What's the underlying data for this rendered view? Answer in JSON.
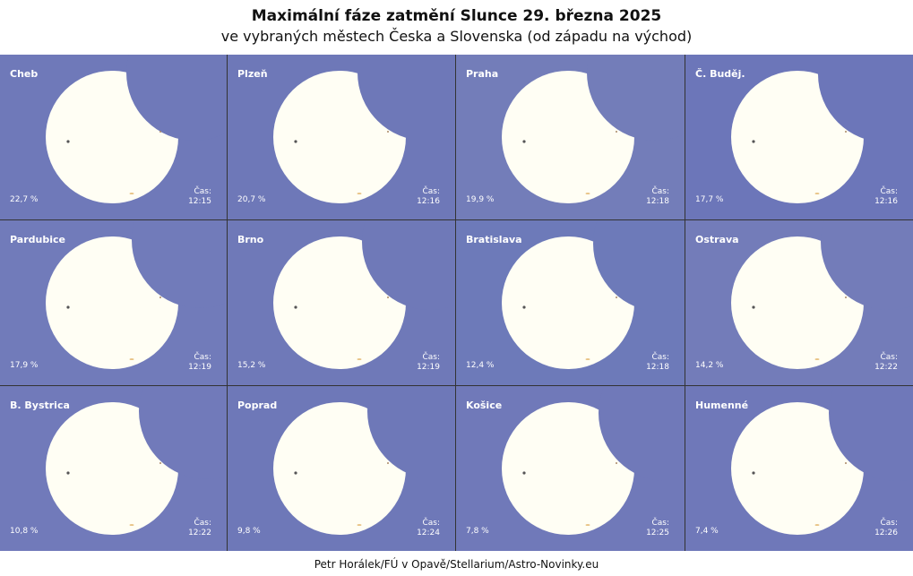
{
  "header": {
    "title": "Maximální fáze zatmění Slunce 29. března 2025",
    "subtitle": "ve vybraných městech Česka a Slovenska (od západu na východ)"
  },
  "time_label": "Čas:",
  "panels": [
    {
      "city": "Cheb",
      "fraction": "22,7 %",
      "time": "12:15"
    },
    {
      "city": "Plzeň",
      "fraction": "20,7 %",
      "time": "12:16"
    },
    {
      "city": "Praha",
      "fraction": "19,9 %",
      "time": "12:18"
    },
    {
      "city": "Č. Buděj.",
      "fraction": "17,7 %",
      "time": "12:16"
    },
    {
      "city": "Pardubice",
      "fraction": "17,9 %",
      "time": "12:19"
    },
    {
      "city": "Brno",
      "fraction": "15,2 %",
      "time": "12:19"
    },
    {
      "city": "Bratislava",
      "fraction": "12,4 %",
      "time": "12:18"
    },
    {
      "city": "Ostrava",
      "fraction": "14,2 %",
      "time": "12:22"
    },
    {
      "city": "B. Bystrica",
      "fraction": "10,8 %",
      "time": "12:22"
    },
    {
      "city": "Poprad",
      "fraction": "9,8 %",
      "time": "12:24"
    },
    {
      "city": "Košice",
      "fraction": "7,8 %",
      "time": "12:25"
    },
    {
      "city": "Humenné",
      "fraction": "7,4 %",
      "time": "12:26"
    }
  ],
  "footer": "Petr Horálek/FÚ v Opavě/Stellarium/Astro-Novinky.eu"
}
